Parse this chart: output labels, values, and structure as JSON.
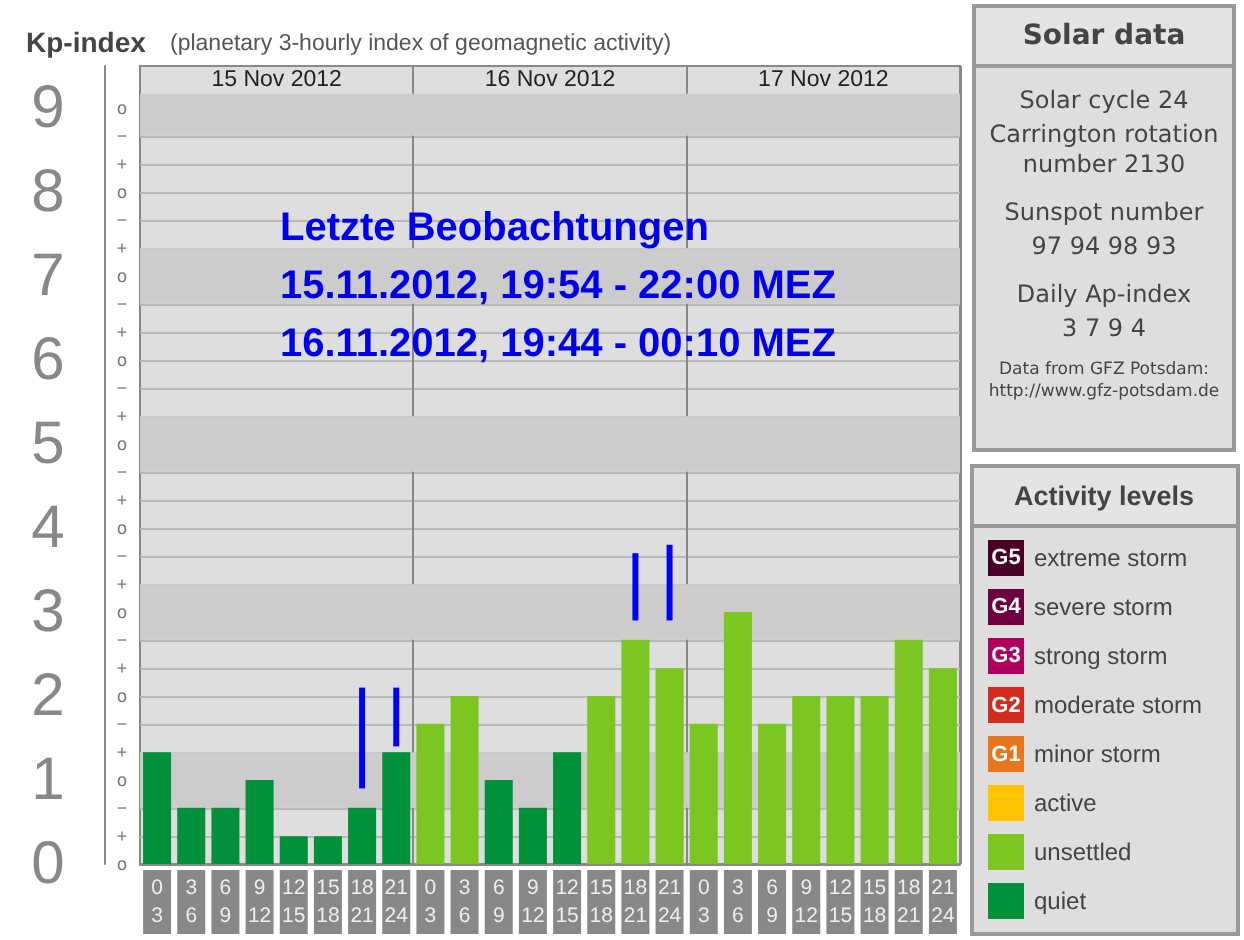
{
  "chart_data": [
    {
      "type": "bar",
      "title": "Kp-index",
      "subtitle": "(planetary 3-hourly index of geomagnetic activity)",
      "categories": [
        "0\n3",
        "3\n6",
        "6\n9",
        "9\n12",
        "12\n15",
        "15\n18",
        "18\n21",
        "21\n24",
        "0\n3",
        "3\n6",
        "6\n9",
        "9\n12",
        "12\n15",
        "15\n18",
        "18\n21",
        "21\n24",
        "0\n3",
        "3\n6",
        "6\n9",
        "9\n12",
        "12\n15",
        "15\n18",
        "18\n21",
        "21\n24"
      ],
      "series": [
        {
          "name": "extreme storm",
          "color": "#4a0026",
          "values": [
            null,
            null,
            null,
            null,
            null,
            null,
            null,
            null,
            null,
            null,
            null,
            null,
            null,
            null,
            null,
            null,
            null,
            null,
            null,
            null,
            null,
            null,
            null,
            null
          ]
        },
        {
          "name": "severe storm",
          "color": "#6e0041",
          "values": [
            null,
            null,
            null,
            null,
            null,
            null,
            null,
            null,
            null,
            null,
            null,
            null,
            null,
            null,
            null,
            null,
            null,
            null,
            null,
            null,
            null,
            null,
            null,
            null
          ]
        },
        {
          "name": "strong storm",
          "color": "#b0005f",
          "values": [
            null,
            null,
            null,
            null,
            null,
            null,
            null,
            null,
            null,
            null,
            null,
            null,
            null,
            null,
            null,
            null,
            null,
            null,
            null,
            null,
            null,
            null,
            null,
            null
          ]
        },
        {
          "name": "moderate storm",
          "color": "#d42b1e",
          "values": [
            null,
            null,
            null,
            null,
            null,
            null,
            null,
            null,
            null,
            null,
            null,
            null,
            null,
            null,
            null,
            null,
            null,
            null,
            null,
            null,
            null,
            null,
            null,
            null
          ]
        },
        {
          "name": "minor storm",
          "color": "#e8761c",
          "values": [
            null,
            null,
            null,
            null,
            null,
            null,
            null,
            null,
            null,
            null,
            null,
            null,
            null,
            null,
            null,
            null,
            null,
            null,
            null,
            null,
            null,
            null,
            null,
            null
          ]
        },
        {
          "name": "active",
          "color": "#ffc300",
          "values": [
            null,
            null,
            null,
            null,
            null,
            null,
            null,
            null,
            null,
            null,
            null,
            null,
            null,
            null,
            null,
            null,
            null,
            null,
            null,
            null,
            null,
            null,
            null,
            null
          ]
        },
        {
          "name": "unsettled",
          "color": "#7bc620",
          "values": [
            null,
            null,
            null,
            null,
            null,
            null,
            null,
            null,
            1.67,
            2.0,
            null,
            null,
            null,
            2.0,
            2.67,
            2.33,
            1.67,
            3.0,
            1.67,
            2.0,
            2.0,
            2.0,
            2.67,
            2.33
          ]
        },
        {
          "name": "quiet",
          "color": "#00913a",
          "values": [
            1.33,
            0.67,
            0.67,
            1.0,
            0.33,
            0.33,
            0.67,
            1.33,
            null,
            null,
            1.0,
            0.67,
            1.33,
            null,
            null,
            null,
            null,
            null,
            null,
            null,
            null,
            null,
            null,
            null
          ]
        },
        {
          "color": "#0000ff",
          "values": [
            null,
            null,
            null,
            null,
            null,
            null,
            1.2,
            0.7,
            null,
            null,
            null,
            null,
            null,
            null,
            0.8,
            0.9,
            null,
            null,
            null,
            null,
            null,
            null,
            null,
            null
          ],
          "base": [
            null,
            null,
            null,
            null,
            null,
            null,
            0.9,
            1.4,
            null,
            null,
            null,
            null,
            null,
            null,
            2.9,
            2.9,
            null,
            null,
            null,
            null,
            null,
            null,
            null,
            null
          ]
        }
      ],
      "ylim": [
        0,
        9.5
      ],
      "yticks": [
        0,
        1,
        2,
        3,
        4,
        5,
        6,
        7,
        8,
        9
      ],
      "y2_categories": [
        "o",
        "−",
        "+",
        "o",
        "−",
        "+",
        "o",
        "−",
        "+",
        "o",
        "−",
        "+",
        "o",
        "−",
        "+",
        "o",
        "−",
        "+",
        "o",
        "−",
        "+",
        "o",
        "−",
        "+",
        "o",
        "−",
        "+",
        "o"
      ],
      "bands": [
        {
          "axis": "y",
          "from": 0.67,
          "to": 1.33,
          "color": "#cccccc"
        },
        {
          "axis": "y",
          "from": 2.67,
          "to": 3.33,
          "color": "#cccccc"
        },
        {
          "axis": "y",
          "from": 4.67,
          "to": 5.33,
          "color": "#cccccc"
        },
        {
          "axis": "y",
          "from": 6.67,
          "to": 7.33,
          "color": "#cccccc"
        },
        {
          "axis": "y",
          "from": 8.67,
          "to": 9.17,
          "color": "#cccccc"
        }
      ],
      "grid": true,
      "legend": "right",
      "legend_title": "Activity levels",
      "annotations": [
        "15 Nov 2012",
        "16 Nov 2012",
        "17 Nov 2012",
        "Letzte Beobachtungen",
        "15.11.2012, 19:54 - 22:00 MEZ",
        "16.11.2012, 19:44 - 00:10 MEZ",
        "G5",
        "G4",
        "G3",
        "G2",
        "G1"
      ]
    },
    {
      "type": "other",
      "title": "Solar data",
      "annotations": [
        "Solar cycle 24",
        "Carrington rotation\nnumber 2130",
        "Sunspot number",
        "97   94   98   93",
        "Daily Ap-index",
        "3     7     9     4",
        "Data from GFZ Potsdam:\nhttp://www.gfz-potsdam.de"
      ]
    }
  ]
}
